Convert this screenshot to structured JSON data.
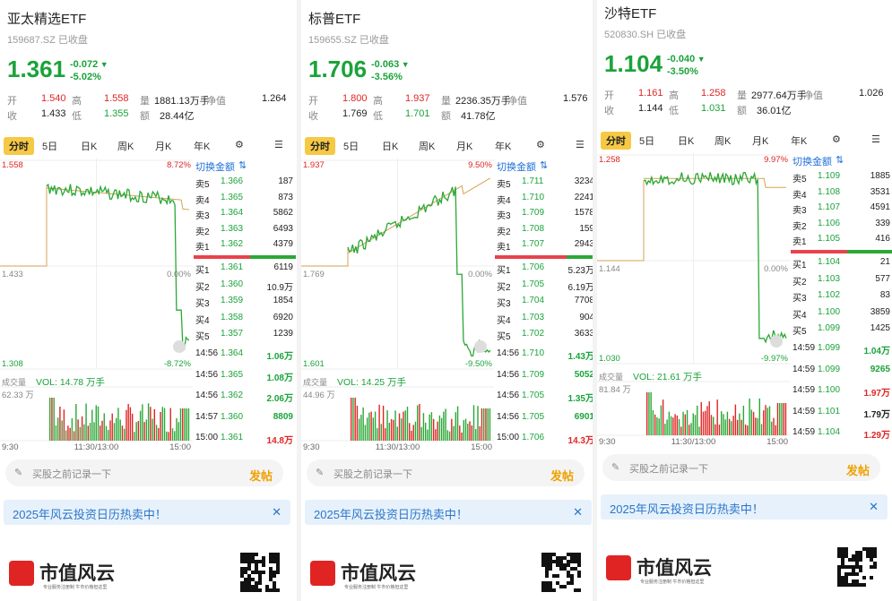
{
  "panels": [
    {
      "name": "亚太精选ETF",
      "code": "159687.SZ 已收盘",
      "price": "1.361",
      "change": "-0.072",
      "change_pct": "-5.02%",
      "stats": {
        "open_label": "开",
        "open": "1.540",
        "high_label": "高",
        "high": "1.558",
        "vol_label": "量",
        "vol": "1881.13万手",
        "nav_label": "净值",
        "nav": "1.264",
        "close_label": "收",
        "close": "1.433",
        "low_label": "低",
        "low": "1.355",
        "amt_label": "额",
        "amt": "28.44亿"
      },
      "tabs": [
        "分时",
        "5日",
        "日K",
        "周K",
        "月K",
        "年K"
      ],
      "chart": {
        "top_left": "1.558",
        "top_right": "8.72%",
        "mid_left": "1.433",
        "mid_right": "0.00%",
        "bot_left": "1.308",
        "bot_right": "-8.72%",
        "vol_label": "成交量",
        "vol_text": "VOL: 14.78 万手",
        "vol_max": "62.33 万",
        "x_start": "9:30",
        "x_mid": "11:30/13:00",
        "x_end": "15:00"
      },
      "orderbook": {
        "switch_label": "切换金额",
        "asks": [
          {
            "label": "卖5",
            "price": "1.366",
            "qty": "187"
          },
          {
            "label": "卖4",
            "price": "1.365",
            "qty": "873"
          },
          {
            "label": "卖3",
            "price": "1.364",
            "qty": "5862"
          },
          {
            "label": "卖2",
            "price": "1.363",
            "qty": "6493"
          },
          {
            "label": "卖1",
            "price": "1.362",
            "qty": "4379"
          }
        ],
        "bids": [
          {
            "label": "买1",
            "price": "1.361",
            "qty": "6119"
          },
          {
            "label": "买2",
            "price": "1.360",
            "qty": "10.9万"
          },
          {
            "label": "买3",
            "price": "1.359",
            "qty": "1854"
          },
          {
            "label": "买4",
            "price": "1.358",
            "qty": "6920"
          },
          {
            "label": "买5",
            "price": "1.357",
            "qty": "1239"
          }
        ],
        "balance_red": 0.55,
        "trades": [
          {
            "time": "14:56",
            "price": "1.364",
            "qty": "1.06万",
            "color": "#1aa33a"
          },
          {
            "time": "14:56",
            "price": "1.365",
            "qty": "1.08万",
            "color": "#1aa33a"
          },
          {
            "time": "14:56",
            "price": "1.362",
            "qty": "2.06万",
            "color": "#1aa33a"
          },
          {
            "time": "14:57",
            "price": "1.360",
            "qty": "8809",
            "color": "#1aa33a"
          },
          {
            "time": "15:00",
            "price": "1.361",
            "qty": "14.8万",
            "color": "#e02424"
          }
        ]
      },
      "comment_placeholder": "买股之前记录一下",
      "post_label": "发帖",
      "banner_text": "2025年风云投资日历热卖中！",
      "footer_brand": "市值风云",
      "footer_sub": "专业服务注册制  牛市价格但这里"
    },
    {
      "name": "标普ETF",
      "code": "159655.SZ 已收盘",
      "price": "1.706",
      "change": "-0.063",
      "change_pct": "-3.56%",
      "stats": {
        "open_label": "开",
        "open": "1.800",
        "high_label": "高",
        "high": "1.937",
        "vol_label": "量",
        "vol": "2236.35万手",
        "nav_label": "净值",
        "nav": "1.576",
        "close_label": "收",
        "close": "1.769",
        "low_label": "低",
        "low": "1.701",
        "amt_label": "额",
        "amt": "41.78亿"
      },
      "tabs": [
        "分时",
        "5日",
        "日K",
        "周K",
        "月K",
        "年K"
      ],
      "chart": {
        "top_left": "1.937",
        "top_right": "9.50%",
        "mid_left": "1.769",
        "mid_right": "0.00%",
        "bot_left": "1.601",
        "bot_right": "-9.50%",
        "vol_label": "成交量",
        "vol_text": "VOL: 14.25 万手",
        "vol_max": "44.96 万",
        "x_start": "9:30",
        "x_mid": "11:30/13:00",
        "x_end": "15:00"
      },
      "orderbook": {
        "switch_label": "切换金额",
        "asks": [
          {
            "label": "卖5",
            "price": "1.711",
            "qty": "3234"
          },
          {
            "label": "卖4",
            "price": "1.710",
            "qty": "2241"
          },
          {
            "label": "卖3",
            "price": "1.709",
            "qty": "1578"
          },
          {
            "label": "卖2",
            "price": "1.708",
            "qty": "159"
          },
          {
            "label": "卖1",
            "price": "1.707",
            "qty": "2943"
          }
        ],
        "bids": [
          {
            "label": "买1",
            "price": "1.706",
            "qty": "5.23万"
          },
          {
            "label": "买2",
            "price": "1.705",
            "qty": "6.19万"
          },
          {
            "label": "买3",
            "price": "1.704",
            "qty": "7708"
          },
          {
            "label": "买4",
            "price": "1.703",
            "qty": "904"
          },
          {
            "label": "买5",
            "price": "1.702",
            "qty": "3633"
          }
        ],
        "balance_red": 0.7,
        "trades": [
          {
            "time": "14:56",
            "price": "1.710",
            "qty": "1.43万",
            "color": "#1aa33a"
          },
          {
            "time": "14:56",
            "price": "1.709",
            "qty": "5052",
            "color": "#1aa33a"
          },
          {
            "time": "14:56",
            "price": "1.705",
            "qty": "1.35万",
            "color": "#1aa33a"
          },
          {
            "time": "14:56",
            "price": "1.705",
            "qty": "6901",
            "color": "#1aa33a"
          },
          {
            "time": "15:00",
            "price": "1.706",
            "qty": "14.3万",
            "color": "#e02424"
          }
        ]
      },
      "comment_placeholder": "买股之前记录一下",
      "post_label": "发帖",
      "banner_text": "2025年风云投资日历热卖中！",
      "footer_brand": "市值风云",
      "footer_sub": "专业服务注册制  牛市价格但这里"
    },
    {
      "name": "沙特ETF",
      "code": "520830.SH 已收盘",
      "price": "1.104",
      "change": "-0.040",
      "change_pct": "-3.50%",
      "stats": {
        "open_label": "开",
        "open": "1.161",
        "high_label": "高",
        "high": "1.258",
        "vol_label": "量",
        "vol": "2977.64万手",
        "nav_label": "净值",
        "nav": "1.026",
        "close_label": "收",
        "close": "1.144",
        "low_label": "低",
        "low": "1.031",
        "amt_label": "额",
        "amt": "36.01亿"
      },
      "tabs": [
        "分时",
        "5日",
        "日K",
        "周K",
        "月K",
        "年K"
      ],
      "chart": {
        "top_left": "1.258",
        "top_right": "9.97%",
        "mid_left": "1.144",
        "mid_right": "0.00%",
        "bot_left": "1.030",
        "bot_right": "-9.97%",
        "vol_label": "成交量",
        "vol_text": "VOL: 21.61 万手",
        "vol_max": "81.84 万",
        "x_start": "9:30",
        "x_mid": "11:30/13:00",
        "x_end": "15:00"
      },
      "orderbook": {
        "switch_label": "切换金额",
        "asks": [
          {
            "label": "卖5",
            "price": "1.109",
            "qty": "1885"
          },
          {
            "label": "卖4",
            "price": "1.108",
            "qty": "3531"
          },
          {
            "label": "卖3",
            "price": "1.107",
            "qty": "4591"
          },
          {
            "label": "卖2",
            "price": "1.106",
            "qty": "339"
          },
          {
            "label": "卖1",
            "price": "1.105",
            "qty": "416"
          }
        ],
        "bids": [
          {
            "label": "买1",
            "price": "1.104",
            "qty": "21"
          },
          {
            "label": "买2",
            "price": "1.103",
            "qty": "577"
          },
          {
            "label": "买3",
            "price": "1.102",
            "qty": "83"
          },
          {
            "label": "买4",
            "price": "1.100",
            "qty": "3859"
          },
          {
            "label": "买5",
            "price": "1.099",
            "qty": "1425"
          }
        ],
        "balance_red": 0.55,
        "trades": [
          {
            "time": "14:59",
            "price": "1.099",
            "qty": "1.04万",
            "color": "#1aa33a"
          },
          {
            "time": "14:59",
            "price": "1.099",
            "qty": "9265",
            "color": "#1aa33a"
          },
          {
            "time": "14:59",
            "price": "1.100",
            "qty": "1.97万",
            "color": "#e02424"
          },
          {
            "time": "14:59",
            "price": "1.101",
            "qty": "1.79万",
            "color": "#222222"
          },
          {
            "time": "14:59",
            "price": "1.104",
            "qty": "1.29万",
            "color": "#e02424"
          }
        ]
      },
      "comment_placeholder": "买股之前记录一下",
      "post_label": "发帖",
      "banner_text": "2025年风云投资日历热卖中！",
      "footer_brand": "市值风云",
      "footer_sub": "专业服务注册制  牛市价格但这里"
    }
  ],
  "colors": {
    "up": "#e02424",
    "down": "#1aa33a",
    "avg": "#d4a255",
    "accent": "#f6c945",
    "link": "#1e6fd9"
  }
}
